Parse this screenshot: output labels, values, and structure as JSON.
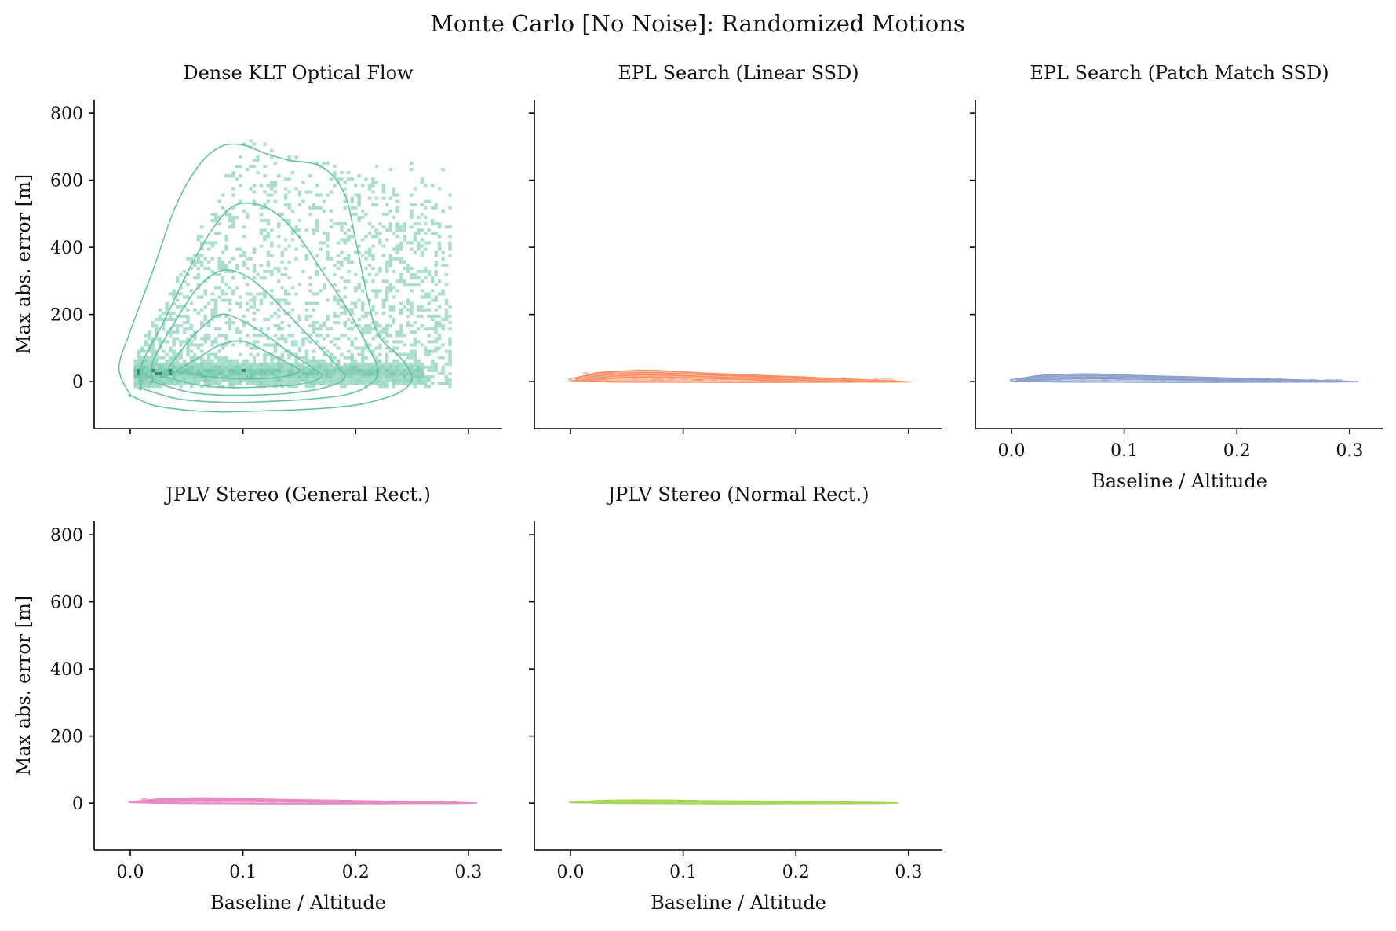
{
  "figure": {
    "title": "Monte Carlo [No Noise]: Randomized Motions",
    "background": "#ffffff"
  },
  "chart_data": [
    {
      "type": "heatmap",
      "title": "Dense KLT Optical Flow",
      "xlabel": "",
      "ylabel": "Max abs. error [m]",
      "xlim": [
        -0.032,
        0.33
      ],
      "ylim": [
        -140,
        840
      ],
      "xticks": [
        0.0,
        0.1,
        0.2,
        0.3
      ],
      "yticks": [
        0,
        200,
        400,
        600,
        800
      ],
      "show_xtick_labels": false,
      "show_ytick_labels": true,
      "color": "#66c2a5",
      "dark_color": "#2f7e64",
      "overlay": "kde-contours",
      "contours": [
        {
          "level": 1,
          "x": [
            0.0,
            0.02,
            0.05,
            0.08,
            0.11,
            0.14,
            0.17,
            0.2,
            0.22,
            0.24,
            0.25,
            0.24,
            0.22,
            0.21,
            0.2,
            0.19,
            0.17,
            0.14,
            0.12,
            0.1,
            0.08,
            0.06,
            0.04,
            0.02,
            0.0,
            -0.01,
            0.0
          ],
          "y": [
            -40,
            -70,
            -85,
            -90,
            -88,
            -85,
            -80,
            -70,
            -55,
            -30,
            10,
            70,
            140,
            260,
            420,
            560,
            640,
            660,
            680,
            705,
            700,
            640,
            520,
            330,
            150,
            40,
            -40
          ]
        },
        {
          "level": 2,
          "x": [
            0.01,
            0.04,
            0.07,
            0.1,
            0.13,
            0.16,
            0.19,
            0.21,
            0.22,
            0.21,
            0.19,
            0.17,
            0.15,
            0.13,
            0.11,
            0.09,
            0.07,
            0.05,
            0.03,
            0.01,
            0.01
          ],
          "y": [
            -20,
            -50,
            -60,
            -62,
            -58,
            -52,
            -40,
            -15,
            30,
            110,
            230,
            330,
            430,
            500,
            530,
            520,
            440,
            320,
            180,
            50,
            -20
          ]
        },
        {
          "level": 3,
          "x": [
            0.02,
            0.05,
            0.08,
            0.11,
            0.14,
            0.17,
            0.19,
            0.18,
            0.16,
            0.14,
            0.12,
            0.1,
            0.08,
            0.06,
            0.04,
            0.02,
            0.02
          ],
          "y": [
            0,
            -30,
            -40,
            -40,
            -35,
            -20,
            10,
            60,
            130,
            200,
            270,
            320,
            330,
            280,
            180,
            60,
            0
          ]
        },
        {
          "level": 4,
          "x": [
            0.03,
            0.06,
            0.09,
            0.12,
            0.15,
            0.17,
            0.16,
            0.14,
            0.12,
            0.1,
            0.08,
            0.06,
            0.04,
            0.03
          ],
          "y": [
            15,
            -10,
            -18,
            -15,
            -8,
            15,
            45,
            90,
            140,
            180,
            200,
            150,
            70,
            15
          ]
        },
        {
          "level": 5,
          "x": [
            0.04,
            0.07,
            0.1,
            0.13,
            0.15,
            0.14,
            0.12,
            0.1,
            0.08,
            0.06,
            0.04
          ],
          "y": [
            30,
            15,
            8,
            12,
            30,
            55,
            90,
            120,
            110,
            70,
            30
          ]
        }
      ]
    },
    {
      "type": "heatmap",
      "title": "EPL Search (Linear SSD)",
      "xlabel": "",
      "ylabel": "",
      "xlim": [
        -0.032,
        0.33
      ],
      "ylim": [
        -140,
        840
      ],
      "xticks": [
        0.0,
        0.1,
        0.2,
        0.3
      ],
      "yticks": [
        0,
        200,
        400,
        600,
        800
      ],
      "show_xtick_labels": false,
      "show_ytick_labels": false,
      "color": "#fc8d62",
      "overlay": "kde-contours"
    },
    {
      "type": "heatmap",
      "title": "EPL Search (Patch Match SSD)",
      "xlabel": "Baseline / Altitude",
      "ylabel": "",
      "xlim": [
        -0.032,
        0.33
      ],
      "ylim": [
        -140,
        840
      ],
      "xticks": [
        0.0,
        0.1,
        0.2,
        0.3
      ],
      "yticks": [
        0,
        200,
        400,
        600,
        800
      ],
      "show_xtick_labels": true,
      "show_ytick_labels": false,
      "color": "#8da0cb",
      "overlay": "kde-contours"
    },
    {
      "type": "heatmap",
      "title": "JPLV Stereo (General Rect.)",
      "xlabel": "Baseline / Altitude",
      "ylabel": "Max abs. error [m]",
      "xlim": [
        -0.032,
        0.33
      ],
      "ylim": [
        -140,
        840
      ],
      "xticks": [
        0.0,
        0.1,
        0.2,
        0.3
      ],
      "yticks": [
        0,
        200,
        400,
        600,
        800
      ],
      "show_xtick_labels": true,
      "show_ytick_labels": true,
      "color": "#e78ac3",
      "overlay": "kde-contours"
    },
    {
      "type": "heatmap",
      "title": "JPLV Stereo (Normal Rect.)",
      "xlabel": "Baseline / Altitude",
      "ylabel": "",
      "xlim": [
        -0.032,
        0.33
      ],
      "ylim": [
        -140,
        840
      ],
      "xticks": [
        0.0,
        0.1,
        0.2,
        0.3
      ],
      "yticks": [
        0,
        200,
        400,
        600,
        800
      ],
      "show_xtick_labels": true,
      "show_ytick_labels": false,
      "color": "#a6d854",
      "overlay": "kde-contours"
    }
  ]
}
